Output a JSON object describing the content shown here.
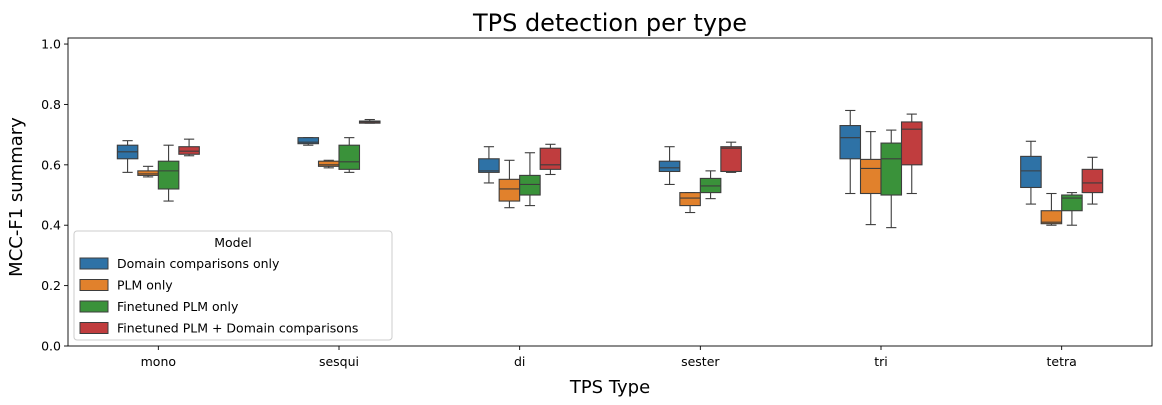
{
  "chart_data": {
    "type": "box",
    "title": "TPS detection per type",
    "xlabel": "TPS Type",
    "ylabel": "MCC-F1 summary",
    "ylim": [
      0.0,
      1.02
    ],
    "yticks": [
      "0.0",
      "0.2",
      "0.4",
      "0.6",
      "0.8",
      "1.0"
    ],
    "categories": [
      "mono",
      "sesqui",
      "di",
      "sester",
      "tri",
      "tetra"
    ],
    "legend": {
      "title": "Model",
      "position": "lower-left"
    },
    "series": [
      {
        "name": "Domain comparisons only",
        "color": "#2e72a6",
        "boxes": [
          {
            "whislo": 0.575,
            "q1": 0.62,
            "med": 0.643,
            "q3": 0.665,
            "whishi": 0.68
          },
          {
            "whislo": 0.665,
            "q1": 0.67,
            "med": 0.675,
            "q3": 0.69,
            "whishi": 0.69
          },
          {
            "whislo": 0.54,
            "q1": 0.575,
            "med": 0.58,
            "q3": 0.62,
            "whishi": 0.66
          },
          {
            "whislo": 0.535,
            "q1": 0.578,
            "med": 0.59,
            "q3": 0.612,
            "whishi": 0.66
          },
          {
            "whislo": 0.505,
            "q1": 0.62,
            "med": 0.69,
            "q3": 0.73,
            "whishi": 0.78
          },
          {
            "whislo": 0.47,
            "q1": 0.525,
            "med": 0.58,
            "q3": 0.628,
            "whishi": 0.678
          }
        ]
      },
      {
        "name": "PLM only",
        "color": "#e1812c",
        "boxes": [
          {
            "whislo": 0.56,
            "q1": 0.565,
            "med": 0.57,
            "q3": 0.58,
            "whishi": 0.595
          },
          {
            "whislo": 0.59,
            "q1": 0.595,
            "med": 0.6,
            "q3": 0.612,
            "whishi": 0.615
          },
          {
            "whislo": 0.458,
            "q1": 0.48,
            "med": 0.52,
            "q3": 0.552,
            "whishi": 0.615
          },
          {
            "whislo": 0.442,
            "q1": 0.465,
            "med": 0.49,
            "q3": 0.508,
            "whishi": 0.508
          },
          {
            "whislo": 0.402,
            "q1": 0.505,
            "med": 0.588,
            "q3": 0.618,
            "whishi": 0.71
          },
          {
            "whislo": 0.4,
            "q1": 0.405,
            "med": 0.41,
            "q3": 0.448,
            "whishi": 0.505
          }
        ]
      },
      {
        "name": "Finetuned PLM only",
        "color": "#3a923a",
        "boxes": [
          {
            "whislo": 0.48,
            "q1": 0.52,
            "med": 0.58,
            "q3": 0.612,
            "whishi": 0.665
          },
          {
            "whislo": 0.575,
            "q1": 0.585,
            "med": 0.61,
            "q3": 0.665,
            "whishi": 0.69
          },
          {
            "whislo": 0.465,
            "q1": 0.5,
            "med": 0.535,
            "q3": 0.565,
            "whishi": 0.64
          },
          {
            "whislo": 0.488,
            "q1": 0.508,
            "med": 0.53,
            "q3": 0.555,
            "whishi": 0.58
          },
          {
            "whislo": 0.392,
            "q1": 0.5,
            "med": 0.62,
            "q3": 0.672,
            "whishi": 0.715
          },
          {
            "whislo": 0.4,
            "q1": 0.448,
            "med": 0.49,
            "q3": 0.5,
            "whishi": 0.508
          }
        ]
      },
      {
        "name": "Finetuned PLM + Domain comparisons",
        "color": "#c03d3e",
        "boxes": [
          {
            "whislo": 0.63,
            "q1": 0.635,
            "med": 0.645,
            "q3": 0.66,
            "whishi": 0.685
          },
          {
            "whislo": 0.738,
            "q1": 0.738,
            "med": 0.742,
            "q3": 0.745,
            "whishi": 0.75
          },
          {
            "whislo": 0.568,
            "q1": 0.585,
            "med": 0.6,
            "q3": 0.655,
            "whishi": 0.668
          },
          {
            "whislo": 0.575,
            "q1": 0.578,
            "med": 0.655,
            "q3": 0.66,
            "whishi": 0.675
          },
          {
            "whislo": 0.505,
            "q1": 0.6,
            "med": 0.718,
            "q3": 0.742,
            "whishi": 0.768
          },
          {
            "whislo": 0.47,
            "q1": 0.508,
            "med": 0.54,
            "q3": 0.585,
            "whishi": 0.625
          }
        ]
      }
    ]
  }
}
